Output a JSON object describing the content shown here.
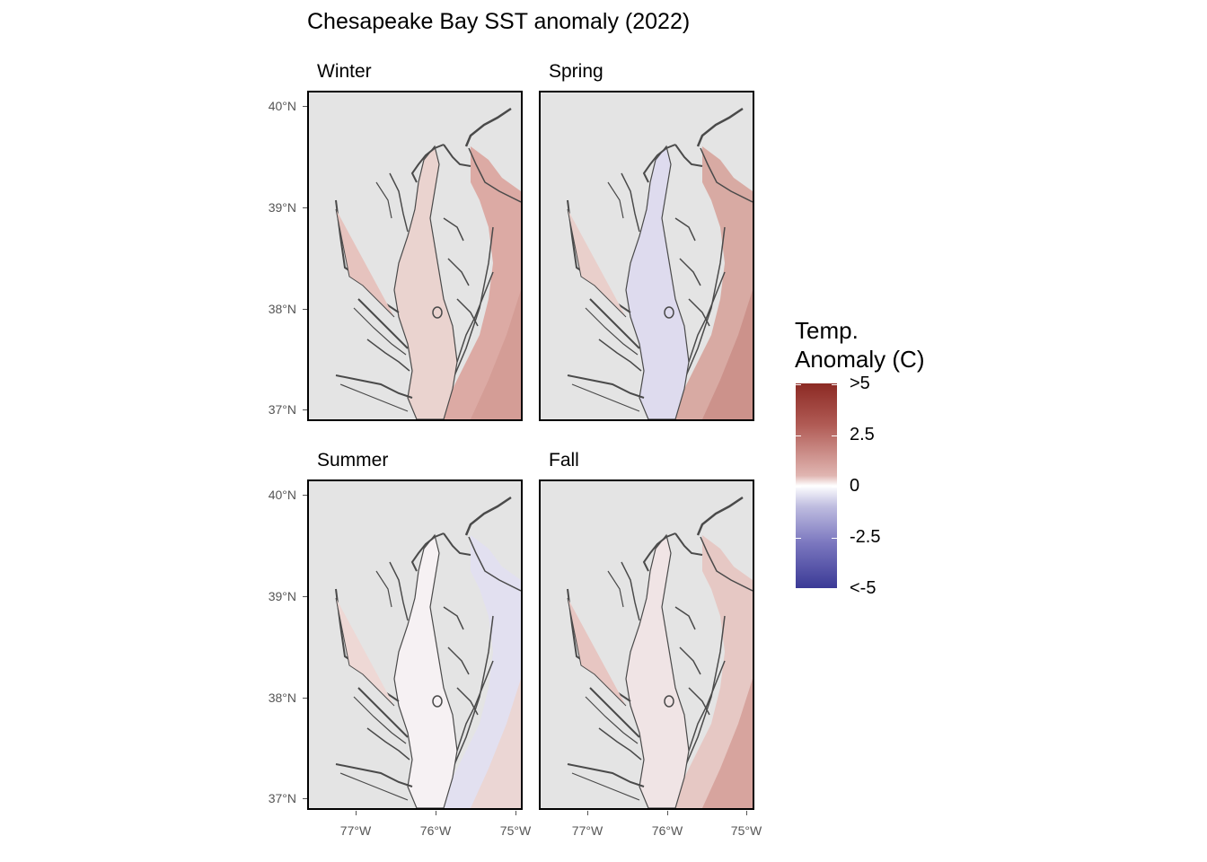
{
  "title": "Chesapeake Bay SST anomaly (2022)",
  "panels": [
    {
      "label": "Winter",
      "tone": "warm-mild"
    },
    {
      "label": "Spring",
      "tone": "cool-bay-warm-ocean"
    },
    {
      "label": "Summer",
      "tone": "neutral-cool-ocean"
    },
    {
      "label": "Fall",
      "tone": "warm"
    }
  ],
  "axes": {
    "y_ticks": [
      "40°N",
      "39°N",
      "38°N",
      "37°N"
    ],
    "x_ticks": [
      "77°W",
      "76°W",
      "75°W"
    ]
  },
  "legend": {
    "title_line1": "Temp.",
    "title_line2": "Anomaly (C)",
    "labels": [
      ">5",
      "2.5",
      "0",
      "-2.5",
      "<-5"
    ],
    "colors": {
      "high": "#8c2a24",
      "mid": "#ffffff",
      "low": "#3b3a96"
    }
  },
  "colors": {
    "land": "#e4e4e4",
    "coastline": "#4a4a4a"
  },
  "chart_data": {
    "type": "heatmap",
    "title": "Chesapeake Bay SST anomaly (2022)",
    "facets": [
      "Winter",
      "Spring",
      "Summer",
      "Fall"
    ],
    "y_ticks_lat": [
      40,
      39,
      38,
      37
    ],
    "x_ticks_lon": [
      -77,
      -76,
      -75
    ],
    "colorbar": {
      "title": "Temp. Anomaly (C)",
      "range": [
        -5,
        5
      ],
      "ticks": [
        ">5",
        "2.5",
        "0",
        "-2.5",
        "<-5"
      ]
    }
  }
}
